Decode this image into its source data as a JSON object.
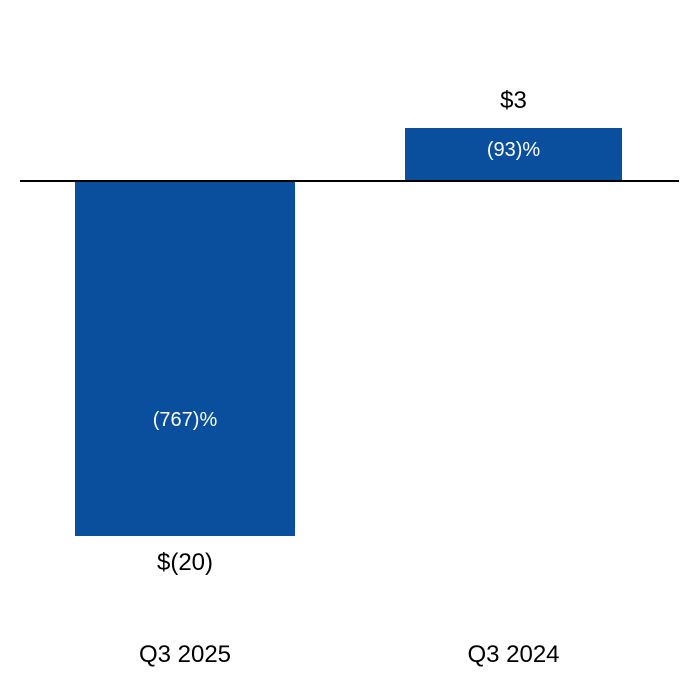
{
  "chart_data": {
    "type": "bar",
    "title": "",
    "categories": [
      "Q3 2025",
      "Q3 2024"
    ],
    "values": [
      -20,
      3
    ],
    "bars": [
      {
        "category": "Q3 2025",
        "value": -20,
        "value_label": "$(20)",
        "pct_label": "(767)%"
      },
      {
        "category": "Q3 2024",
        "value": 3,
        "value_label": "$3",
        "pct_label": "(93)%"
      }
    ],
    "xlabel": "",
    "ylabel": "",
    "ylim": [
      -22,
      5
    ],
    "baseline": 0,
    "grid": false,
    "legend": false,
    "value_label_position": "outside-end",
    "pct_label_position": "inside"
  },
  "colors": {
    "bar": "#0a4f9e",
    "axis_line": "#000000",
    "label_inside": "#ffffff",
    "label_outside": "#000000",
    "background": "#ffffff"
  }
}
